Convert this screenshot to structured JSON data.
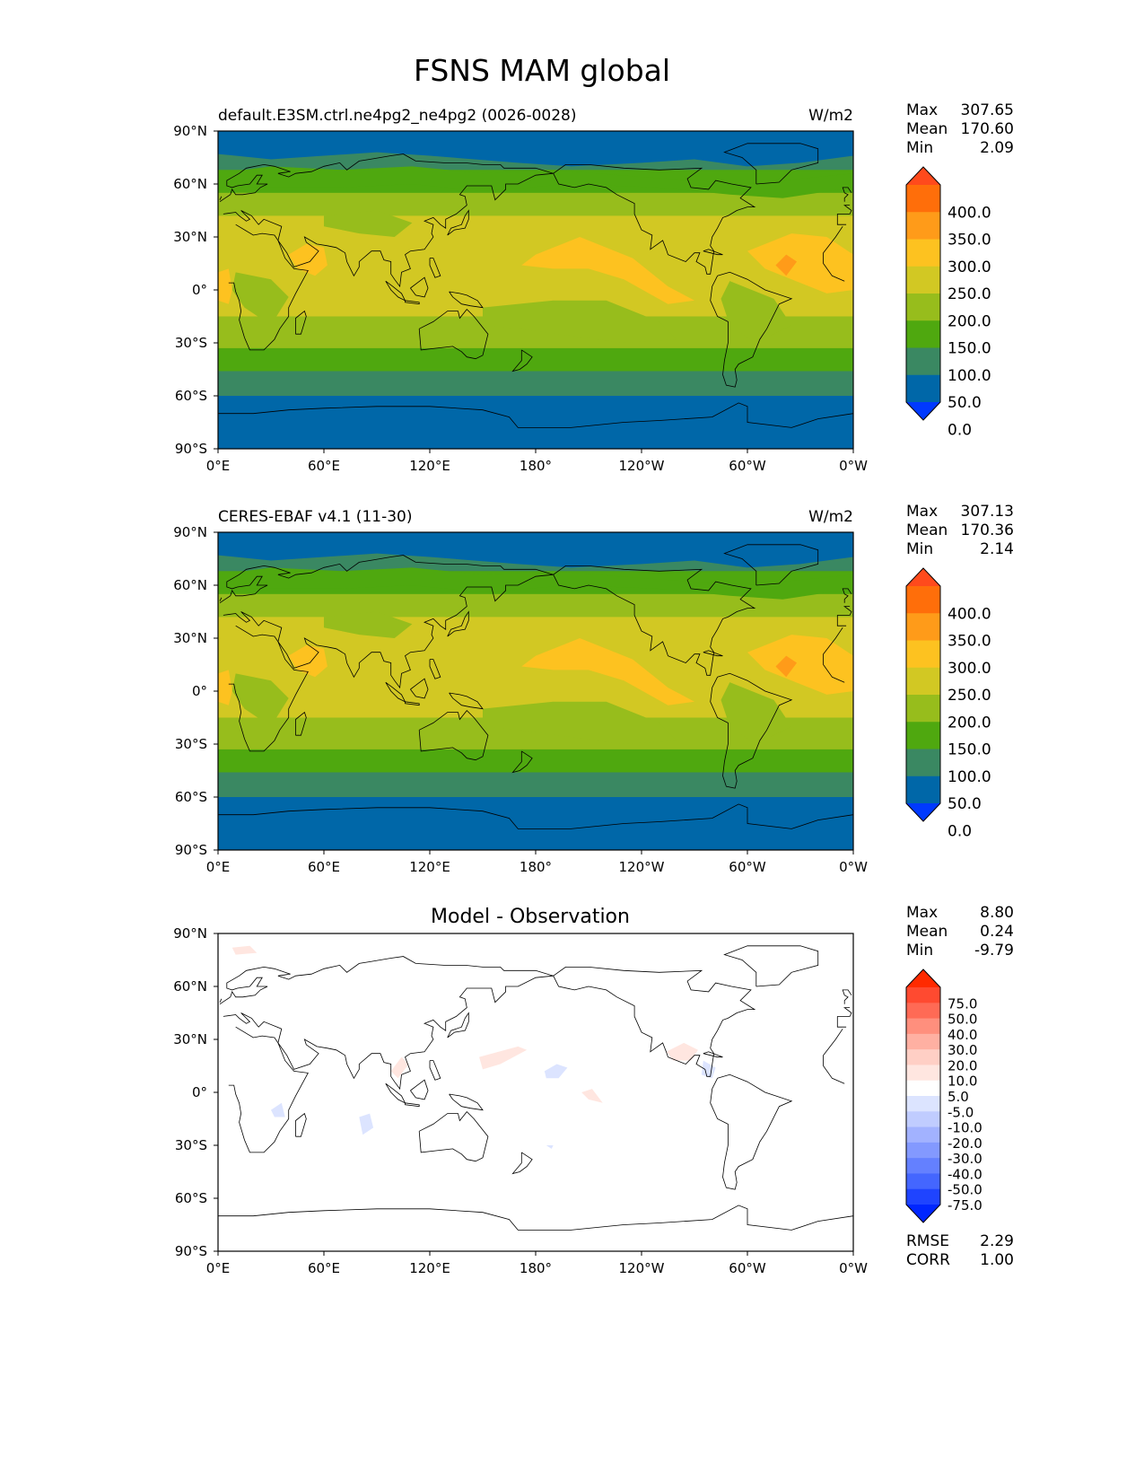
{
  "title": "FSNS MAM global",
  "panels": [
    {
      "id": "test",
      "left_title": "default.E3SM.ctrl.ne4pg2_ne4pg2 (0026-0028)",
      "center_title": "",
      "right_title": "W/m2",
      "stats": [
        {
          "label": "Max",
          "value": "307.65"
        },
        {
          "label": "Mean",
          "value": "170.60"
        },
        {
          "label": "Min",
          "value": "2.09"
        }
      ],
      "colorbar": {
        "labels": [
          "400.0",
          "350.0",
          "300.0",
          "250.0",
          "200.0",
          "150.0",
          "100.0",
          "50.0",
          "0.0"
        ],
        "colors": [
          "#ff4a1c",
          "#ff6e0a",
          "#ff9b19",
          "#fdc220",
          "#d2c823",
          "#97bd1c",
          "#4fa80f",
          "#3a8862",
          "#0067a8",
          "#0039ff"
        ]
      },
      "footer": []
    },
    {
      "id": "ref",
      "left_title": "CERES-EBAF v4.1 (11-30)",
      "center_title": "",
      "right_title": "W/m2",
      "stats": [
        {
          "label": "Max",
          "value": "307.13"
        },
        {
          "label": "Mean",
          "value": "170.36"
        },
        {
          "label": "Min",
          "value": "2.14"
        }
      ],
      "colorbar": {
        "labels": [
          "400.0",
          "350.0",
          "300.0",
          "250.0",
          "200.0",
          "150.0",
          "100.0",
          "50.0",
          "0.0"
        ],
        "colors": [
          "#ff4a1c",
          "#ff6e0a",
          "#ff9b19",
          "#fdc220",
          "#d2c823",
          "#97bd1c",
          "#4fa80f",
          "#3a8862",
          "#0067a8",
          "#0039ff"
        ]
      },
      "footer": []
    },
    {
      "id": "diff",
      "left_title": "",
      "center_title": "Model - Observation",
      "right_title": "",
      "stats": [
        {
          "label": "Max",
          "value": "8.80"
        },
        {
          "label": "Mean",
          "value": "0.24"
        },
        {
          "label": "Min",
          "value": "-9.79"
        }
      ],
      "colorbar": {
        "labels": [
          "75.0",
          "50.0",
          "40.0",
          "30.0",
          "20.0",
          "10.0",
          "5.0",
          "-5.0",
          "-10.0",
          "-20.0",
          "-30.0",
          "-40.0",
          "-50.0",
          "-75.0"
        ],
        "colors": [
          "#ff2a00",
          "#ff4a30",
          "#ff6a55",
          "#ff8f7d",
          "#ffb0a2",
          "#ffcfc5",
          "#ffe6e0",
          "#ffffff",
          "#dce4ff",
          "#c0ccff",
          "#a2b2ff",
          "#8399ff",
          "#6480ff",
          "#4466ff",
          "#1f44ff",
          "#0026ff"
        ]
      },
      "footer": [
        {
          "label": "RMSE",
          "value": "2.29"
        },
        {
          "label": "CORR",
          "value": "1.00"
        }
      ]
    }
  ],
  "axes": {
    "lat_ticks": [
      "90°N",
      "60°N",
      "30°N",
      "0°",
      "30°S",
      "60°S",
      "90°S"
    ],
    "lon_ticks": [
      "0°E",
      "60°E",
      "120°E",
      "180°",
      "120°W",
      "60°W",
      "0°W"
    ]
  },
  "chart_data": [
    {
      "type": "heatmap",
      "title": "default.E3SM.ctrl.ne4pg2_ne4pg2 (0026-0028)",
      "units": "W/m2",
      "levels": [
        0,
        50,
        100,
        150,
        200,
        250,
        300,
        350,
        400
      ],
      "max": 307.65,
      "mean": 170.6,
      "min": 2.09
    },
    {
      "type": "heatmap",
      "title": "CERES-EBAF v4.1 (11-30)",
      "units": "W/m2",
      "levels": [
        0,
        50,
        100,
        150,
        200,
        250,
        300,
        350,
        400
      ],
      "max": 307.13,
      "mean": 170.36,
      "min": 2.14
    },
    {
      "type": "heatmap",
      "title": "Model - Observation",
      "levels": [
        -75,
        -50,
        -40,
        -30,
        -20,
        -10,
        -5,
        5,
        10,
        20,
        30,
        40,
        50,
        75
      ],
      "max": 8.8,
      "mean": 0.24,
      "min": -9.79,
      "rmse": 2.29,
      "corr": 1.0
    }
  ]
}
